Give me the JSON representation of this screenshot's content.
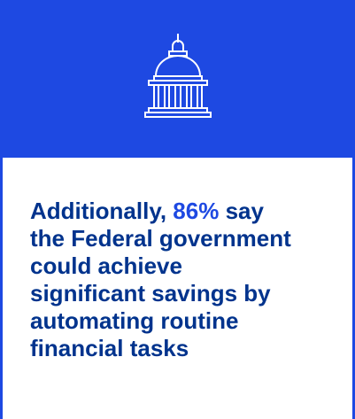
{
  "icon": "capitol-building-icon",
  "colors": {
    "accent_band": "#1e49e2",
    "text": "#00338d",
    "highlight": "#1e49e2",
    "icon_stroke": "#ffffff"
  },
  "stat": {
    "lead": "Additionally, ",
    "value": "86%",
    "line_1_rest": " say",
    "line_2": "the Federal government",
    "line_3": "could achieve",
    "line_4": "significant savings by",
    "line_5": "automating routine",
    "line_6": "financial tasks"
  }
}
